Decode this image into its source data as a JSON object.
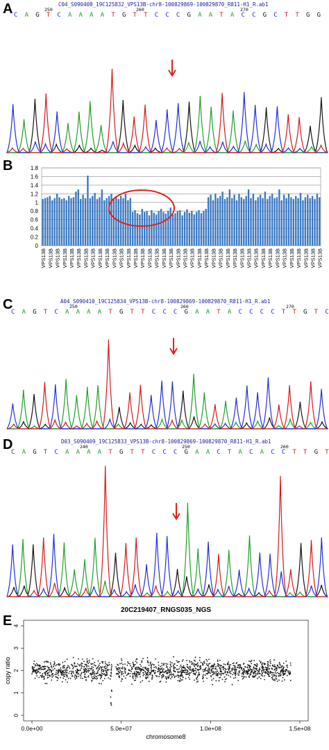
{
  "panels": [
    {
      "letter": "A",
      "title": "C04_S090408_19C125832_VPS13B-chr8-100829869-100829870_R811-H1_R.ab1",
      "bases": "CAGTCAAAATGTTCCCGAATACCGCTTGG",
      "positions": [
        "250",
        "260",
        "270"
      ]
    },
    {
      "letter": "B"
    },
    {
      "letter": "C",
      "title": "A04_S090410_19C125834_VPS13B-chr8-100829869-100829870_R811-H1_R.ab1",
      "bases": "CAGTCAAAATGTTCCCGAATACCCCTTGTC",
      "positions": [
        "250",
        "260",
        "270"
      ]
    },
    {
      "letter": "D",
      "title": "D03_S090409_19C125833_VPS13B-chr8-100829869-100829870_R811-H1_R.ab1",
      "bases": "CAGTCAAAATGTTCCCGAACTACACCTTGTC",
      "positions": [
        "240",
        "250",
        "260"
      ]
    },
    {
      "letter": "E"
    }
  ],
  "colors": {
    "A": "#1f9e2a",
    "C": "#1e2fd6",
    "G": "#111111",
    "T": "#d11a1a",
    "bar": "#3a78c2",
    "arrow": "#e0201a",
    "circle": "#e0201a"
  },
  "chart_data": [
    {
      "type": "bar",
      "title": "",
      "xlabel": "",
      "ylabel": "",
      "ylim": [
        0,
        1.8
      ],
      "yticks": [
        "0",
        "0.2",
        "0.4",
        "0.6",
        "0.8",
        "1",
        "1.2",
        "1.4",
        "1.6",
        "1.8"
      ],
      "category_label": "VPS13B",
      "values": [
        1.08,
        1.1,
        1.12,
        1.15,
        1.05,
        1.1,
        1.2,
        1.12,
        1.08,
        1.1,
        1.05,
        1.15,
        1.1,
        1.12,
        1.25,
        1.3,
        1.08,
        1.18,
        1.1,
        1.62,
        1.1,
        1.15,
        1.22,
        1.08,
        1.12,
        1.3,
        1.05,
        1.1,
        1.15,
        1.2,
        1.1,
        1.12,
        1.08,
        1.15,
        1.1,
        1.2,
        1.05,
        1.1,
        0.78,
        0.82,
        0.75,
        0.72,
        0.85,
        0.78,
        0.8,
        0.7,
        0.82,
        0.76,
        0.72,
        0.8,
        0.85,
        0.78,
        0.74,
        0.8,
        0.88,
        0.72,
        0.75,
        0.8,
        0.82,
        0.7,
        0.78,
        0.84,
        0.76,
        0.8,
        0.72,
        0.78,
        0.82,
        0.75,
        0.8,
        0.85,
        1.12,
        1.18,
        1.05,
        1.2,
        1.1,
        1.15,
        1.25,
        1.08,
        1.12,
        1.3,
        1.1,
        1.18,
        1.05,
        1.2,
        1.12,
        1.08,
        1.15,
        1.3,
        1.1,
        1.2,
        1.05,
        1.12,
        1.18,
        1.1,
        1.25,
        1.08,
        1.15,
        1.2,
        1.1,
        1.12,
        1.3,
        1.05,
        1.18,
        1.1,
        1.2,
        1.12,
        1.08,
        1.15,
        1.1,
        1.22,
        1.05,
        1.12,
        1.18,
        1.1,
        1.15,
        1.08,
        1.2,
        1.12
      ],
      "grid": true
    },
    {
      "type": "scatter",
      "title": "20C219407_RNGS035_NGS",
      "xlabel": "chromosome8",
      "ylabel": "copy ratio",
      "xlim": [
        0,
        145000000
      ],
      "ylim": [
        0,
        4
      ],
      "xticks": [
        "0.0e+00",
        "5.0e+07",
        "1.0e+08",
        "1.5e+08"
      ],
      "yticks": [
        "0",
        "1",
        "2",
        "3",
        "4"
      ],
      "baseline": 2.0,
      "gap": [
        45000000,
        47000000
      ]
    }
  ]
}
